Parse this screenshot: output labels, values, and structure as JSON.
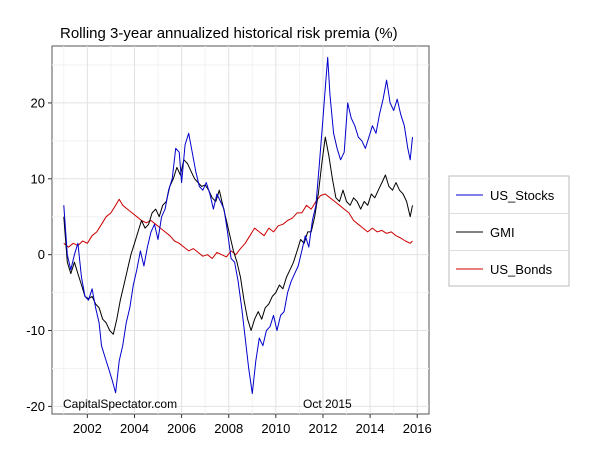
{
  "chart_data": {
    "type": "line",
    "title": "Rolling 3-year annualized historical risk premia (%)",
    "xlabel": "",
    "ylabel": "",
    "xlim": [
      2000.5,
      2016.5
    ],
    "ylim": [
      -21,
      27.5
    ],
    "xticks": [
      2002,
      2004,
      2006,
      2008,
      2010,
      2012,
      2014,
      2016
    ],
    "yticks": [
      -20,
      -10,
      0,
      10,
      20
    ],
    "grid": true,
    "legend_position": "right",
    "annotations": {
      "source": "CapitalSpectator.com",
      "date": "Oct 2015"
    },
    "series": [
      {
        "name": "US_Stocks",
        "color": "#0000cc",
        "points": [
          [
            2001.0,
            6.5
          ],
          [
            2001.15,
            0.0
          ],
          [
            2001.3,
            -2.0
          ],
          [
            2001.45,
            0.0
          ],
          [
            2001.6,
            1.5
          ],
          [
            2001.75,
            -3.0
          ],
          [
            2001.9,
            -5.5
          ],
          [
            2002.05,
            -6.0
          ],
          [
            2002.2,
            -4.5
          ],
          [
            2002.35,
            -7.0
          ],
          [
            2002.5,
            -9.0
          ],
          [
            2002.6,
            -12.0
          ],
          [
            2002.75,
            -13.5
          ],
          [
            2002.9,
            -15.0
          ],
          [
            2003.05,
            -16.5
          ],
          [
            2003.2,
            -18.2
          ],
          [
            2003.35,
            -14.0
          ],
          [
            2003.5,
            -12.0
          ],
          [
            2003.65,
            -9.0
          ],
          [
            2003.8,
            -7.0
          ],
          [
            2003.95,
            -4.0
          ],
          [
            2004.1,
            -2.0
          ],
          [
            2004.25,
            0.5
          ],
          [
            2004.4,
            -1.5
          ],
          [
            2004.55,
            1.0
          ],
          [
            2004.7,
            3.0
          ],
          [
            2004.85,
            4.0
          ],
          [
            2005.0,
            2.0
          ],
          [
            2005.15,
            5.0
          ],
          [
            2005.3,
            6.0
          ],
          [
            2005.45,
            8.5
          ],
          [
            2005.6,
            10.0
          ],
          [
            2005.75,
            14.0
          ],
          [
            2005.9,
            13.5
          ],
          [
            2006.0,
            9.5
          ],
          [
            2006.15,
            14.5
          ],
          [
            2006.3,
            16.0
          ],
          [
            2006.45,
            13.5
          ],
          [
            2006.6,
            11.0
          ],
          [
            2006.75,
            9.0
          ],
          [
            2006.9,
            8.5
          ],
          [
            2007.05,
            9.5
          ],
          [
            2007.2,
            8.0
          ],
          [
            2007.35,
            6.0
          ],
          [
            2007.5,
            8.0
          ],
          [
            2007.65,
            7.0
          ],
          [
            2007.8,
            6.0
          ],
          [
            2007.95,
            3.0
          ],
          [
            2008.1,
            -0.5
          ],
          [
            2008.25,
            -1.0
          ],
          [
            2008.4,
            -3.5
          ],
          [
            2008.55,
            -7.0
          ],
          [
            2008.7,
            -11.0
          ],
          [
            2008.85,
            -15.0
          ],
          [
            2009.0,
            -18.3
          ],
          [
            2009.15,
            -14.0
          ],
          [
            2009.3,
            -11.0
          ],
          [
            2009.45,
            -12.0
          ],
          [
            2009.6,
            -10.0
          ],
          [
            2009.75,
            -9.5
          ],
          [
            2009.9,
            -8.0
          ],
          [
            2010.05,
            -10.0
          ],
          [
            2010.2,
            -8.0
          ],
          [
            2010.35,
            -7.5
          ],
          [
            2010.5,
            -5.0
          ],
          [
            2010.65,
            -3.5
          ],
          [
            2010.8,
            -2.5
          ],
          [
            2010.95,
            -1.5
          ],
          [
            2011.1,
            0.5
          ],
          [
            2011.25,
            2.5
          ],
          [
            2011.4,
            1.0
          ],
          [
            2011.55,
            4.5
          ],
          [
            2011.7,
            6.5
          ],
          [
            2011.85,
            12.0
          ],
          [
            2012.0,
            18.0
          ],
          [
            2012.1,
            22.0
          ],
          [
            2012.2,
            26.0
          ],
          [
            2012.3,
            21.0
          ],
          [
            2012.45,
            16.0
          ],
          [
            2012.6,
            14.0
          ],
          [
            2012.75,
            12.5
          ],
          [
            2012.9,
            13.5
          ],
          [
            2013.05,
            20.0
          ],
          [
            2013.2,
            18.0
          ],
          [
            2013.35,
            17.0
          ],
          [
            2013.5,
            15.5
          ],
          [
            2013.65,
            15.0
          ],
          [
            2013.8,
            14.0
          ],
          [
            2013.95,
            15.5
          ],
          [
            2014.1,
            17.0
          ],
          [
            2014.25,
            16.0
          ],
          [
            2014.4,
            18.5
          ],
          [
            2014.55,
            20.5
          ],
          [
            2014.7,
            23.0
          ],
          [
            2014.85,
            20.0
          ],
          [
            2015.0,
            19.0
          ],
          [
            2015.15,
            20.5
          ],
          [
            2015.3,
            18.5
          ],
          [
            2015.45,
            17.0
          ],
          [
            2015.6,
            14.0
          ],
          [
            2015.7,
            12.5
          ],
          [
            2015.8,
            15.5
          ]
        ]
      },
      {
        "name": "GMI",
        "color": "#000000",
        "points": [
          [
            2001.0,
            5.0
          ],
          [
            2001.15,
            -1.0
          ],
          [
            2001.3,
            -2.5
          ],
          [
            2001.45,
            -1.0
          ],
          [
            2001.6,
            -2.5
          ],
          [
            2001.75,
            -4.0
          ],
          [
            2001.9,
            -5.5
          ],
          [
            2002.05,
            -5.8
          ],
          [
            2002.2,
            -5.5
          ],
          [
            2002.35,
            -6.5
          ],
          [
            2002.5,
            -7.0
          ],
          [
            2002.65,
            -8.5
          ],
          [
            2002.8,
            -9.0
          ],
          [
            2002.95,
            -10.0
          ],
          [
            2003.1,
            -10.5
          ],
          [
            2003.25,
            -8.5
          ],
          [
            2003.4,
            -6.0
          ],
          [
            2003.55,
            -4.0
          ],
          [
            2003.7,
            -2.0
          ],
          [
            2003.85,
            0.0
          ],
          [
            2004.0,
            1.5
          ],
          [
            2004.15,
            3.0
          ],
          [
            2004.3,
            4.5
          ],
          [
            2004.45,
            3.5
          ],
          [
            2004.6,
            4.0
          ],
          [
            2004.75,
            5.5
          ],
          [
            2004.9,
            6.0
          ],
          [
            2005.05,
            5.0
          ],
          [
            2005.2,
            6.5
          ],
          [
            2005.35,
            7.0
          ],
          [
            2005.5,
            9.0
          ],
          [
            2005.65,
            10.0
          ],
          [
            2005.8,
            11.5
          ],
          [
            2005.95,
            10.5
          ],
          [
            2006.1,
            12.5
          ],
          [
            2006.25,
            12.0
          ],
          [
            2006.4,
            11.0
          ],
          [
            2006.55,
            10.0
          ],
          [
            2006.7,
            9.5
          ],
          [
            2006.85,
            9.0
          ],
          [
            2007.0,
            9.2
          ],
          [
            2007.15,
            8.5
          ],
          [
            2007.3,
            7.5
          ],
          [
            2007.45,
            7.0
          ],
          [
            2007.6,
            8.5
          ],
          [
            2007.75,
            6.5
          ],
          [
            2007.9,
            4.5
          ],
          [
            2008.05,
            2.5
          ],
          [
            2008.2,
            0.5
          ],
          [
            2008.35,
            -1.0
          ],
          [
            2008.5,
            -3.0
          ],
          [
            2008.65,
            -6.0
          ],
          [
            2008.8,
            -8.5
          ],
          [
            2008.95,
            -10.0
          ],
          [
            2009.1,
            -8.5
          ],
          [
            2009.25,
            -7.5
          ],
          [
            2009.4,
            -8.5
          ],
          [
            2009.55,
            -7.0
          ],
          [
            2009.7,
            -6.5
          ],
          [
            2009.85,
            -5.5
          ],
          [
            2010.0,
            -5.0
          ],
          [
            2010.15,
            -4.0
          ],
          [
            2010.3,
            -4.5
          ],
          [
            2010.45,
            -3.0
          ],
          [
            2010.6,
            -2.0
          ],
          [
            2010.75,
            -1.0
          ],
          [
            2010.9,
            0.5
          ],
          [
            2011.05,
            2.0
          ],
          [
            2011.2,
            1.5
          ],
          [
            2011.35,
            3.0
          ],
          [
            2011.5,
            3.0
          ],
          [
            2011.65,
            5.0
          ],
          [
            2011.8,
            8.0
          ],
          [
            2011.95,
            12.0
          ],
          [
            2012.1,
            15.5
          ],
          [
            2012.25,
            13.0
          ],
          [
            2012.4,
            10.0
          ],
          [
            2012.55,
            7.5
          ],
          [
            2012.7,
            7.0
          ],
          [
            2012.85,
            8.5
          ],
          [
            2013.0,
            7.0
          ],
          [
            2013.15,
            6.5
          ],
          [
            2013.3,
            7.5
          ],
          [
            2013.45,
            7.0
          ],
          [
            2013.6,
            6.0
          ],
          [
            2013.75,
            7.0
          ],
          [
            2013.9,
            6.5
          ],
          [
            2014.05,
            8.0
          ],
          [
            2014.2,
            7.5
          ],
          [
            2014.35,
            8.5
          ],
          [
            2014.5,
            9.5
          ],
          [
            2014.65,
            10.5
          ],
          [
            2014.8,
            9.0
          ],
          [
            2014.95,
            8.5
          ],
          [
            2015.1,
            9.5
          ],
          [
            2015.25,
            8.5
          ],
          [
            2015.4,
            8.0
          ],
          [
            2015.55,
            7.0
          ],
          [
            2015.7,
            5.0
          ],
          [
            2015.8,
            6.5
          ]
        ]
      },
      {
        "name": "US_Bonds",
        "color": "#cc0000",
        "points": [
          [
            2001.0,
            1.5
          ],
          [
            2001.2,
            1.0
          ],
          [
            2001.4,
            1.5
          ],
          [
            2001.6,
            1.2
          ],
          [
            2001.8,
            1.8
          ],
          [
            2002.0,
            1.5
          ],
          [
            2002.2,
            2.5
          ],
          [
            2002.4,
            3.0
          ],
          [
            2002.6,
            4.0
          ],
          [
            2002.8,
            5.0
          ],
          [
            2003.0,
            5.5
          ],
          [
            2003.2,
            6.5
          ],
          [
            2003.35,
            7.3
          ],
          [
            2003.5,
            6.5
          ],
          [
            2003.7,
            6.0
          ],
          [
            2003.9,
            5.5
          ],
          [
            2004.1,
            5.0
          ],
          [
            2004.3,
            4.5
          ],
          [
            2004.5,
            4.2
          ],
          [
            2004.7,
            4.5
          ],
          [
            2004.9,
            4.0
          ],
          [
            2005.1,
            3.5
          ],
          [
            2005.3,
            3.0
          ],
          [
            2005.5,
            2.5
          ],
          [
            2005.7,
            1.8
          ],
          [
            2005.9,
            1.5
          ],
          [
            2006.1,
            1.0
          ],
          [
            2006.3,
            0.5
          ],
          [
            2006.5,
            0.8
          ],
          [
            2006.7,
            0.3
          ],
          [
            2006.9,
            -0.2
          ],
          [
            2007.1,
            0.0
          ],
          [
            2007.3,
            -0.5
          ],
          [
            2007.5,
            0.3
          ],
          [
            2007.7,
            0.0
          ],
          [
            2007.9,
            -0.3
          ],
          [
            2008.1,
            0.5
          ],
          [
            2008.3,
            0.0
          ],
          [
            2008.5,
            0.8
          ],
          [
            2008.7,
            1.5
          ],
          [
            2008.9,
            2.5
          ],
          [
            2009.1,
            3.5
          ],
          [
            2009.3,
            3.0
          ],
          [
            2009.5,
            2.5
          ],
          [
            2009.7,
            3.5
          ],
          [
            2009.9,
            3.0
          ],
          [
            2010.1,
            3.8
          ],
          [
            2010.3,
            4.0
          ],
          [
            2010.5,
            4.5
          ],
          [
            2010.7,
            4.8
          ],
          [
            2010.9,
            5.5
          ],
          [
            2011.1,
            5.5
          ],
          [
            2011.3,
            6.5
          ],
          [
            2011.5,
            6.0
          ],
          [
            2011.7,
            7.0
          ],
          [
            2011.9,
            7.8
          ],
          [
            2012.1,
            8.0
          ],
          [
            2012.3,
            7.5
          ],
          [
            2012.5,
            7.0
          ],
          [
            2012.7,
            6.5
          ],
          [
            2012.9,
            6.0
          ],
          [
            2013.1,
            5.5
          ],
          [
            2013.3,
            4.5
          ],
          [
            2013.5,
            4.0
          ],
          [
            2013.7,
            3.5
          ],
          [
            2013.9,
            3.0
          ],
          [
            2014.1,
            3.5
          ],
          [
            2014.3,
            3.0
          ],
          [
            2014.5,
            3.2
          ],
          [
            2014.7,
            2.8
          ],
          [
            2014.9,
            3.0
          ],
          [
            2015.1,
            2.5
          ],
          [
            2015.3,
            2.2
          ],
          [
            2015.5,
            1.8
          ],
          [
            2015.7,
            1.5
          ],
          [
            2015.8,
            1.8
          ]
        ]
      }
    ]
  }
}
